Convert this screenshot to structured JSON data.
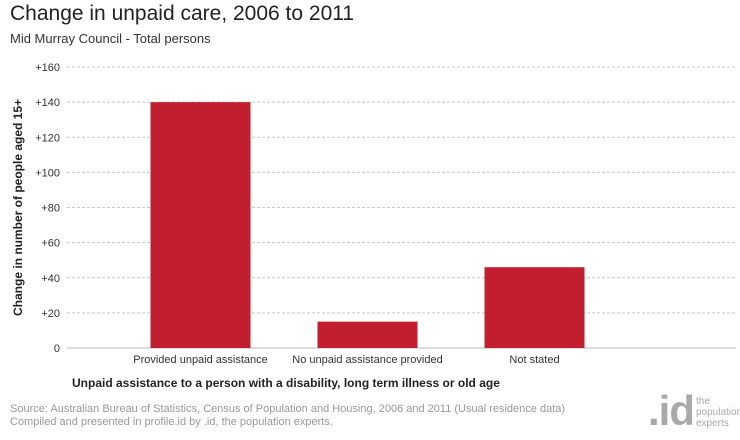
{
  "title": "Change in unpaid care, 2006 to 2011",
  "subtitle": "Mid Murray Council - Total persons",
  "chart_data": {
    "type": "bar",
    "categories": [
      "Provided unpaid assistance",
      "No unpaid assistance provided",
      "Not stated"
    ],
    "values": [
      140,
      15,
      46
    ],
    "ylabel": "Change in number of people aged 15+",
    "xlabel": "Unpaid assistance to a person with a disability, long term illness or old age",
    "ylim": [
      0,
      160
    ],
    "yticks": [
      0,
      20,
      40,
      60,
      80,
      100,
      120,
      140,
      160
    ],
    "ytick_labels": [
      "0",
      "+20",
      "+40",
      "+60",
      "+80",
      "+100",
      "+120",
      "+140",
      "+160"
    ],
    "grid": true,
    "bar_color": "#c11f2f"
  },
  "source": {
    "line1": "Source: Australian Bureau of Statistics, Census of Population and Housing, 2006 and 2011 (Usual residence data)",
    "line2": "Compiled and presented in profile.id by .id, the population experts."
  },
  "logo": {
    "mark": ".id",
    "line1": "the",
    "line2": "population",
    "line3": "experts"
  }
}
